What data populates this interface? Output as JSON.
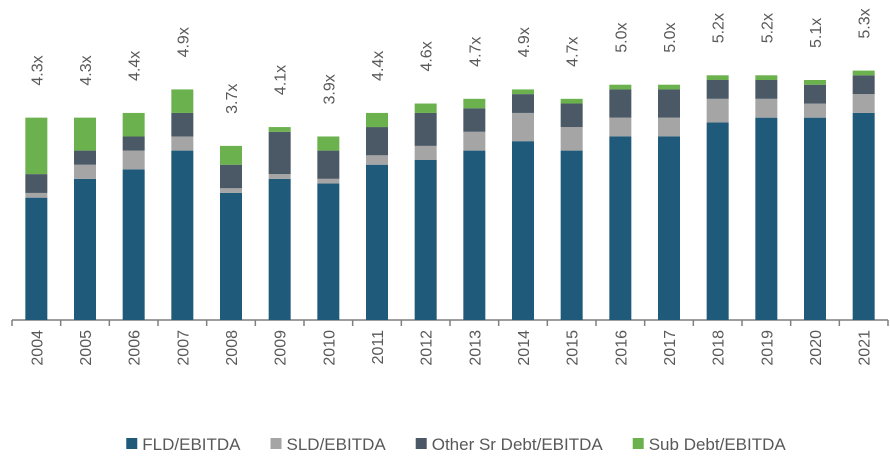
{
  "chart_data": {
    "type": "stacked_bar",
    "categories": [
      "2004",
      "2005",
      "2006",
      "2007",
      "2008",
      "2009",
      "2010",
      "2011",
      "2012",
      "2013",
      "2014",
      "2015",
      "2016",
      "2017",
      "2018",
      "2019",
      "2020",
      "2021"
    ],
    "series": [
      {
        "name": "FLD/EBITDA",
        "color": "#1f5a7a",
        "values": [
          2.6,
          3.0,
          3.2,
          3.6,
          2.7,
          3.0,
          2.9,
          3.3,
          3.4,
          3.6,
          3.8,
          3.6,
          3.9,
          3.9,
          4.2,
          4.3,
          4.3,
          4.4
        ]
      },
      {
        "name": "SLD/EBITDA",
        "color": "#a5a5a5",
        "values": [
          0.1,
          0.3,
          0.4,
          0.3,
          0.1,
          0.1,
          0.1,
          0.2,
          0.3,
          0.4,
          0.6,
          0.5,
          0.4,
          0.4,
          0.5,
          0.4,
          0.3,
          0.4
        ]
      },
      {
        "name": "Other Sr Debt/EBITDA",
        "color": "#4b5866",
        "values": [
          0.4,
          0.3,
          0.3,
          0.5,
          0.5,
          0.9,
          0.6,
          0.6,
          0.7,
          0.5,
          0.4,
          0.5,
          0.6,
          0.6,
          0.4,
          0.4,
          0.4,
          0.4
        ]
      },
      {
        "name": "Sub Debt/EBITDA",
        "color": "#6bb24e",
        "values": [
          1.2,
          0.7,
          0.5,
          0.5,
          0.4,
          0.1,
          0.3,
          0.3,
          0.2,
          0.2,
          0.1,
          0.1,
          0.1,
          0.1,
          0.1,
          0.1,
          0.1,
          0.1
        ]
      }
    ],
    "total_labels": [
      "4.3x",
      "4.3x",
      "4.4x",
      "4.9x",
      "3.7x",
      "4.1x",
      "3.9x",
      "4.4x",
      "4.6x",
      "4.7x",
      "4.9x",
      "4.7x",
      "5.0x",
      "5.0x",
      "5.2x",
      "5.2x",
      "5.1x",
      "5.3x"
    ],
    "ylim": [
      0,
      6.8
    ],
    "legend": "bottom"
  }
}
